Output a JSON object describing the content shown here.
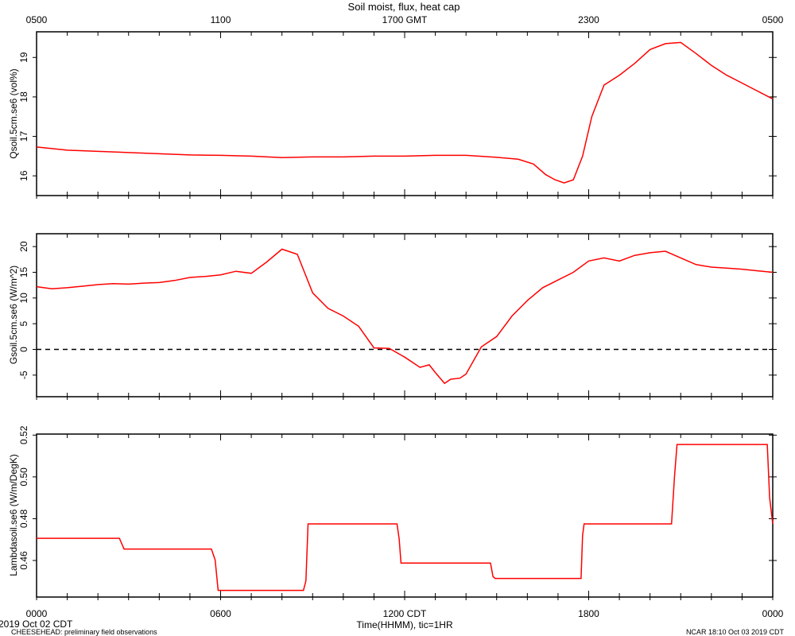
{
  "title": "Soil moist, flux, heat cap",
  "top_axis_ticks": [
    "0500",
    "1100",
    "1700 GMT",
    "2300",
    "0500"
  ],
  "bottom_axis_ticks": [
    "0000",
    "0600",
    "1200 CDT",
    "1800",
    "0000"
  ],
  "xlabel": "Time(HHMM), tic=1HR",
  "footer": {
    "start_date": "2019 Oct 02 CDT",
    "project": "CHEESEHEAD: preliminary field observations",
    "stamp": "NCAR 18:10 Oct 03 2019 CDT"
  },
  "colors": {
    "series": "#ff0000",
    "axes": "#000000",
    "zero_line": "#000000"
  },
  "chart_data": [
    {
      "type": "line",
      "ylabel": "Qsoil.5cm.se6 (vol%)",
      "xlim": [
        0,
        24
      ],
      "ylim": [
        15.5,
        19.65
      ],
      "yticks": [
        16,
        17,
        18,
        19
      ],
      "ytick_labels": [
        "16",
        "17",
        "18",
        "19"
      ],
      "series": [
        {
          "x": [
            0,
            1,
            2,
            3,
            4,
            5,
            6,
            7,
            8,
            9,
            10,
            11,
            12,
            13,
            14,
            15,
            15.7,
            16.2,
            16.6,
            16.9,
            17.2,
            17.5,
            17.8,
            18.1,
            18.5,
            19,
            19.5,
            20,
            20.5,
            21,
            21.5,
            22,
            22.5,
            23,
            24
          ],
          "y": [
            16.73,
            16.65,
            16.62,
            16.59,
            16.56,
            16.53,
            16.52,
            16.5,
            16.46,
            16.48,
            16.48,
            16.5,
            16.5,
            16.52,
            16.52,
            16.47,
            16.42,
            16.3,
            16.03,
            15.9,
            15.82,
            15.9,
            16.5,
            17.5,
            18.3,
            18.55,
            18.85,
            19.2,
            19.35,
            19.38,
            19.1,
            18.8,
            18.55,
            18.35,
            17.95
          ]
        }
      ]
    },
    {
      "type": "line",
      "ylabel": "Gsoil.5cm.se6 (W/m^2)",
      "xlim": [
        0,
        24
      ],
      "ylim": [
        -9.2,
        22.5
      ],
      "yticks": [
        -5,
        0,
        5,
        10,
        15,
        20
      ],
      "ytick_labels": [
        "-5",
        "0",
        "5",
        "10",
        "15",
        "20"
      ],
      "zero_line": true,
      "series": [
        {
          "x": [
            0,
            0.5,
            1,
            1.5,
            2,
            2.5,
            3,
            3.5,
            4,
            4.5,
            5,
            5.5,
            6,
            6.5,
            7,
            7.5,
            8,
            8.5,
            9,
            9.5,
            10,
            10.5,
            11,
            11.5,
            12,
            12.5,
            12.8,
            13,
            13.3,
            13.5,
            13.8,
            14,
            14.5,
            15,
            15.5,
            16,
            16.5,
            17,
            17.5,
            18,
            18.5,
            19,
            19.5,
            20,
            20.5,
            21,
            21.5,
            22,
            22.5,
            23,
            23.5,
            24
          ],
          "y": [
            12.2,
            11.8,
            12,
            12.3,
            12.6,
            12.8,
            12.7,
            12.9,
            13,
            13.4,
            14.0,
            14.2,
            14.5,
            15.2,
            14.8,
            17,
            19.5,
            18.5,
            11,
            8.0,
            6.5,
            4.5,
            0.3,
            0.2,
            -1.5,
            -3.5,
            -3.0,
            -4.5,
            -6.6,
            -5.8,
            -5.6,
            -4.8,
            0.5,
            2.5,
            6.5,
            9.5,
            12,
            13.5,
            15,
            17.2,
            17.8,
            17.2,
            18.3,
            18.8,
            19.1,
            17.8,
            16.5,
            16,
            15.8,
            15.6,
            15.3,
            15.0
          ]
        }
      ]
    },
    {
      "type": "line",
      "ylabel": "Lambdasoil.se6 (W/m/DegK)",
      "xlim": [
        0,
        24
      ],
      "ylim": [
        0.4425,
        0.5205
      ],
      "yticks": [
        0.46,
        0.48,
        0.5,
        0.52
      ],
      "ytick_labels": [
        "0.46",
        "0.48",
        "0.50",
        "0.52"
      ],
      "series": [
        {
          "x": [
            0,
            2.7,
            2.85,
            5.7,
            5.82,
            5.92,
            8.7,
            8.78,
            8.85,
            11.75,
            11.82,
            11.88,
            14.8,
            14.88,
            14.95,
            17.75,
            17.8,
            17.85,
            20.7,
            20.8,
            20.88,
            23.82,
            23.9,
            24
          ],
          "y": [
            0.4706,
            0.4706,
            0.4655,
            0.4655,
            0.4603,
            0.4457,
            0.4457,
            0.4503,
            0.4775,
            0.4775,
            0.4703,
            0.4588,
            0.4588,
            0.4523,
            0.4514,
            0.4514,
            0.472,
            0.4775,
            0.4775,
            0.5005,
            0.5155,
            0.5155,
            0.49,
            0.4775
          ]
        }
      ]
    }
  ]
}
